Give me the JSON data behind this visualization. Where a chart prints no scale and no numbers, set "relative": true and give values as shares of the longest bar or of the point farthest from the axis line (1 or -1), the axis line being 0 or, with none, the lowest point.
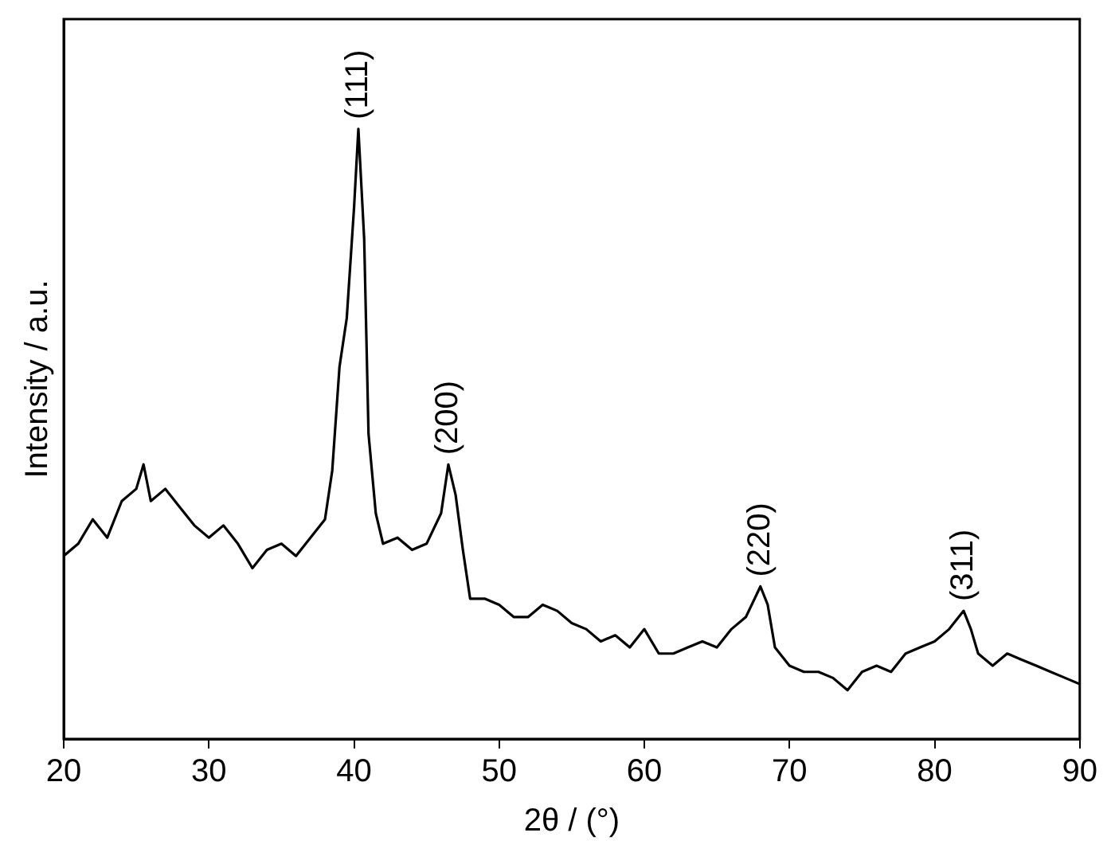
{
  "chart_data": {
    "type": "line",
    "xlabel": "2θ / (°)",
    "ylabel": "Intensity / a.u.",
    "relative": true,
    "xlim": [
      20,
      90
    ],
    "xticks": [
      20,
      30,
      40,
      50,
      60,
      70,
      80,
      90
    ],
    "grid": false,
    "legend": false,
    "marker": "none",
    "line_style": "solid",
    "x": [
      20,
      21,
      22,
      23,
      24,
      25,
      25.5,
      26,
      27,
      28,
      29,
      30,
      31,
      32,
      33,
      34,
      35,
      36,
      37,
      38,
      38.5,
      39,
      39.5,
      40,
      40.3,
      40.7,
      41,
      41.5,
      42,
      43,
      44,
      45,
      46,
      46.5,
      47,
      47.5,
      48,
      49,
      50,
      51,
      52,
      53,
      54,
      55,
      56,
      57,
      58,
      59,
      60,
      61,
      62,
      63,
      64,
      65,
      66,
      67,
      68,
      68.5,
      69,
      70,
      71,
      72,
      73,
      74,
      75,
      76,
      77,
      78,
      79,
      80,
      81,
      82,
      82.5,
      83,
      84,
      85,
      86,
      87,
      88,
      89,
      90
    ],
    "series": [
      {
        "color": "#000000",
        "values": [
          0.3,
          0.32,
          0.36,
          0.33,
          0.39,
          0.41,
          0.45,
          0.39,
          0.41,
          0.38,
          0.35,
          0.33,
          0.35,
          0.32,
          0.28,
          0.31,
          0.32,
          0.3,
          0.33,
          0.36,
          0.44,
          0.61,
          0.69,
          0.87,
          1.0,
          0.82,
          0.5,
          0.37,
          0.32,
          0.33,
          0.31,
          0.32,
          0.37,
          0.45,
          0.4,
          0.31,
          0.23,
          0.23,
          0.22,
          0.2,
          0.2,
          0.22,
          0.21,
          0.19,
          0.18,
          0.16,
          0.17,
          0.15,
          0.18,
          0.14,
          0.14,
          0.15,
          0.16,
          0.15,
          0.18,
          0.2,
          0.25,
          0.22,
          0.15,
          0.12,
          0.11,
          0.11,
          0.1,
          0.08,
          0.11,
          0.12,
          0.11,
          0.14,
          0.15,
          0.16,
          0.18,
          0.21,
          0.18,
          0.14,
          0.12,
          0.14,
          0.13,
          0.12,
          0.11,
          0.1,
          0.09
        ]
      }
    ],
    "annotations": [
      {
        "text": "(111)",
        "x": 40.3,
        "y": 1.0
      },
      {
        "text": "(200)",
        "x": 46.5,
        "y": 0.45
      },
      {
        "text": "(220)",
        "x": 68,
        "y": 0.25
      },
      {
        "text": "(311)",
        "x": 82,
        "y": 0.21
      }
    ]
  }
}
